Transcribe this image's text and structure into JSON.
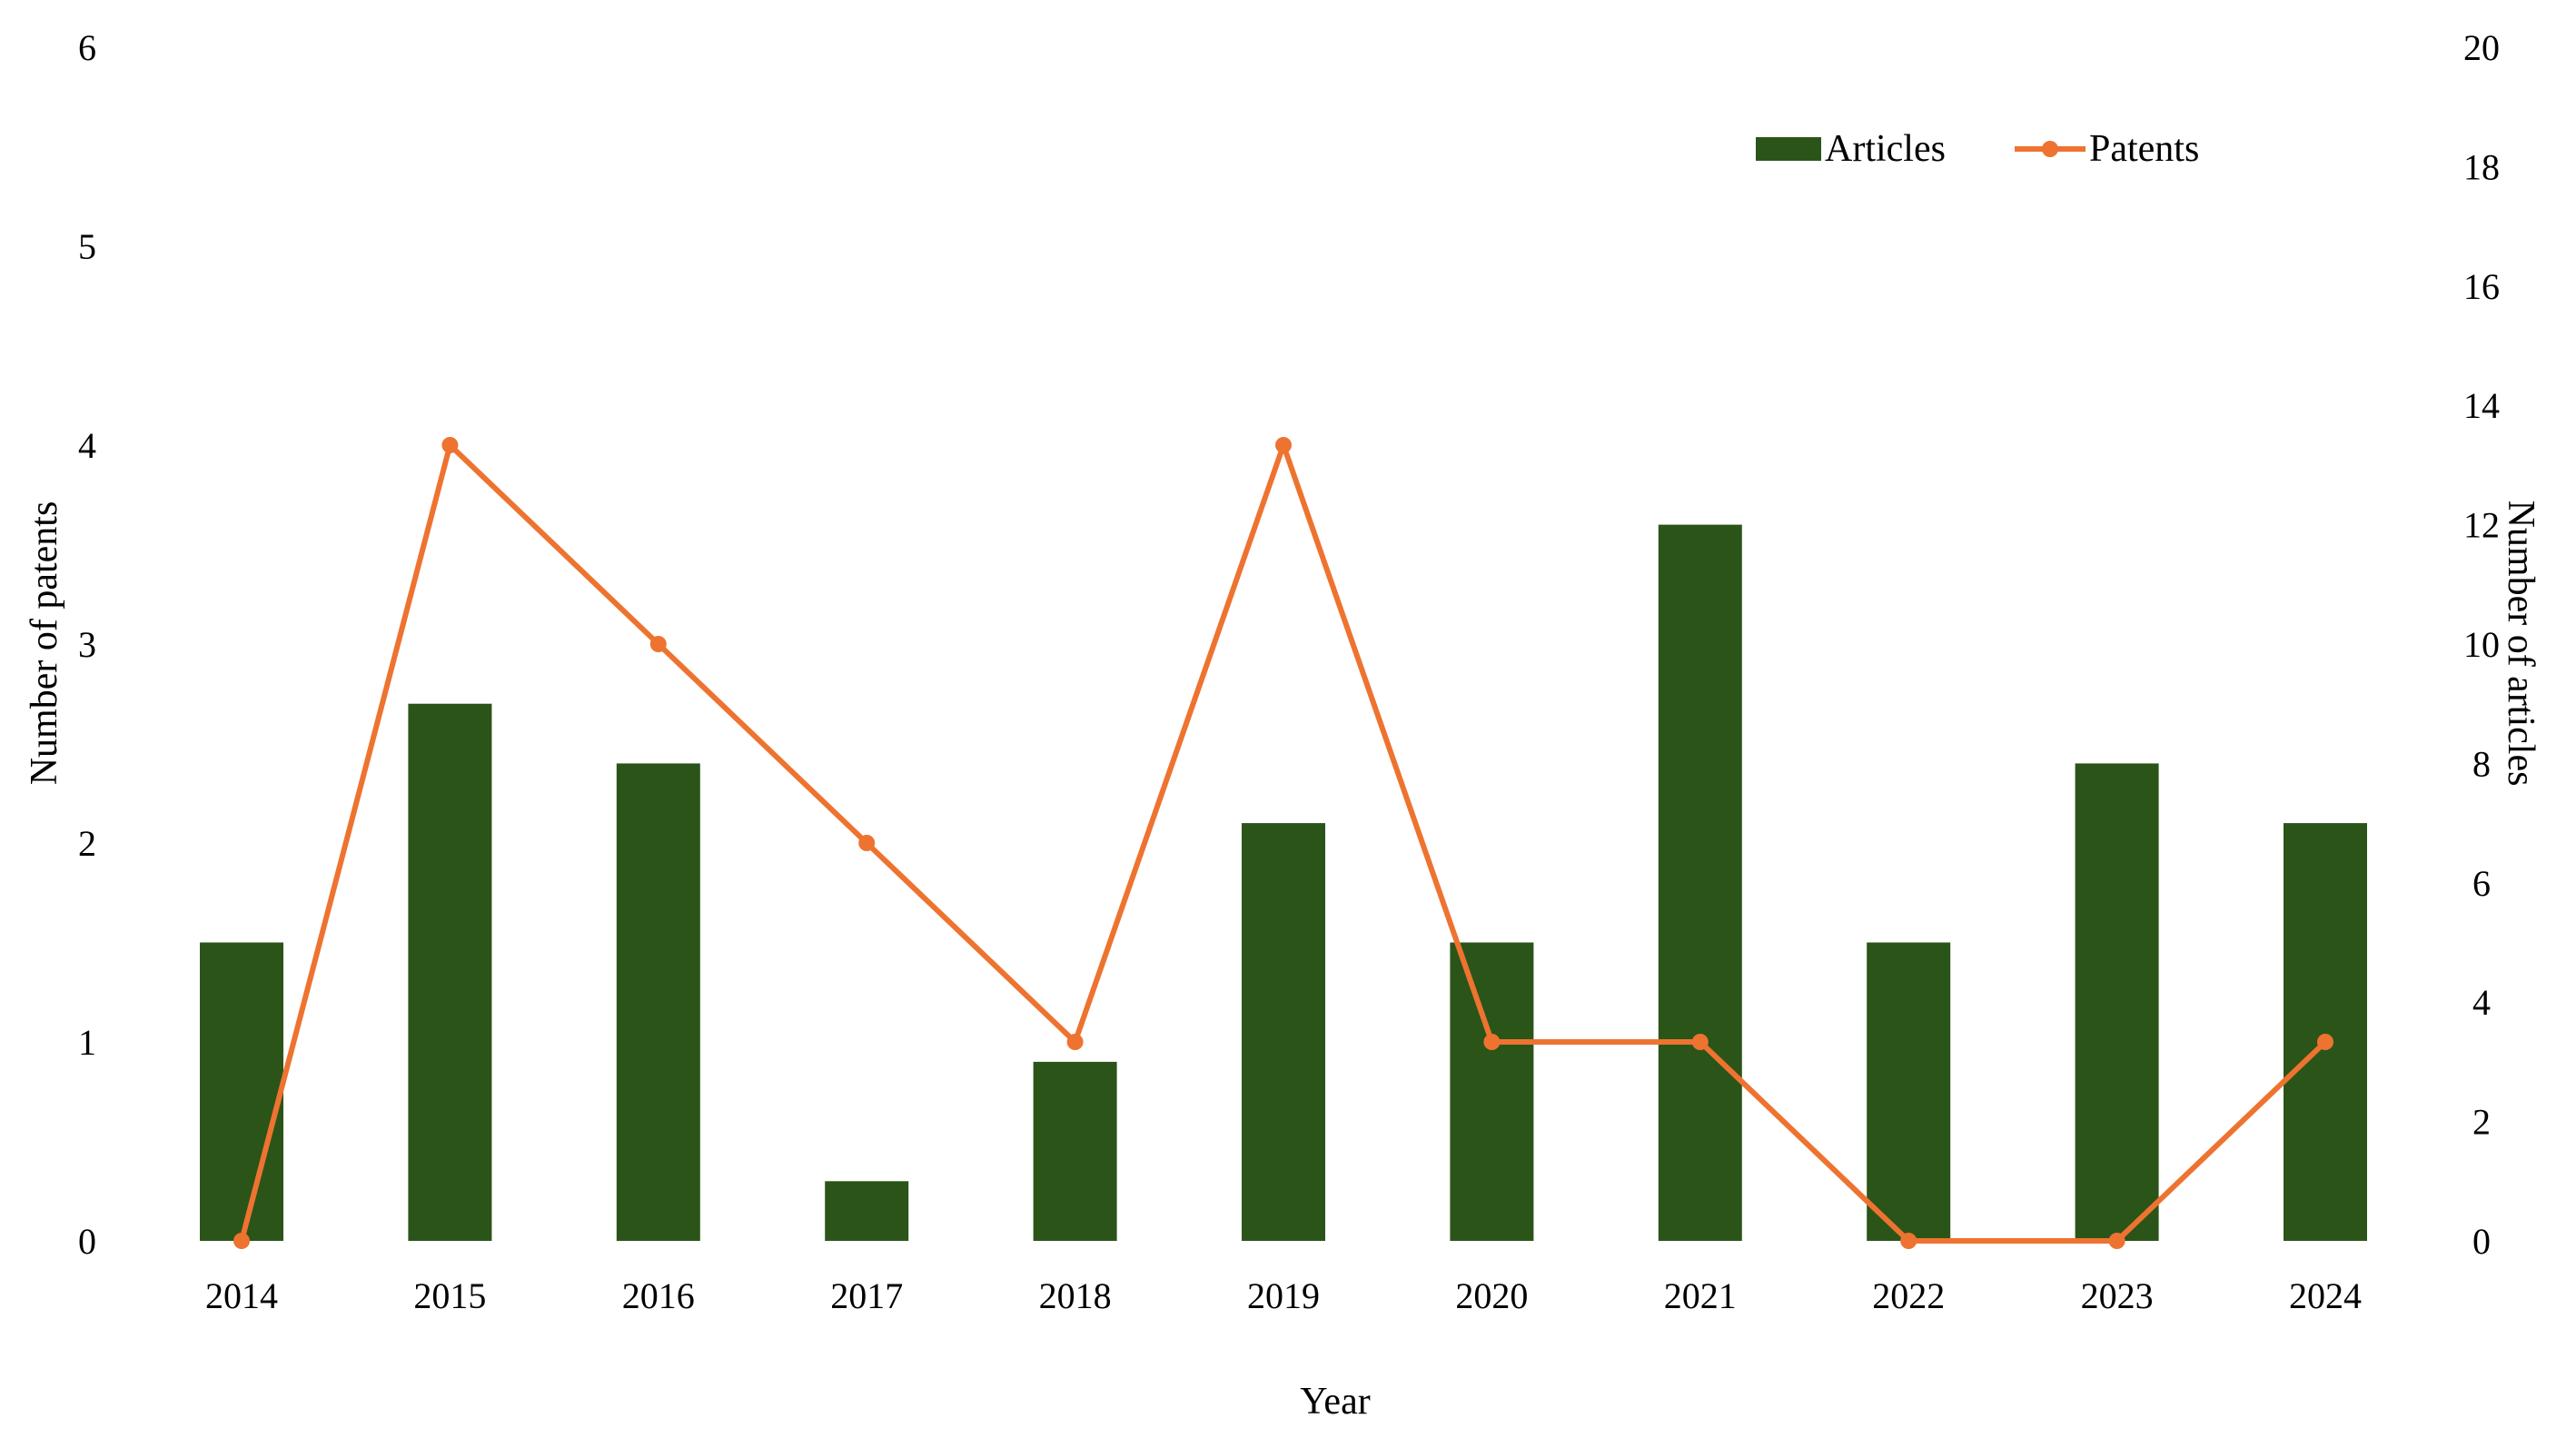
{
  "chart_data": {
    "type": "bar+line",
    "categories": [
      "2014",
      "2015",
      "2016",
      "2017",
      "2018",
      "2019",
      "2020",
      "2021",
      "2022",
      "2023",
      "2024"
    ],
    "series": [
      {
        "name": "Articles",
        "type": "bar",
        "axis": "right",
        "color": "#2b5419",
        "values": [
          5,
          9,
          8,
          1,
          3,
          7,
          5,
          12,
          5,
          8,
          7
        ]
      },
      {
        "name": "Patents",
        "type": "line",
        "axis": "left",
        "color": "#ee7330",
        "values": [
          0,
          4,
          3,
          2,
          1,
          4,
          1,
          1,
          0,
          0,
          1
        ]
      }
    ],
    "xlabel": "Year",
    "ylabel_left": "Number of patents",
    "ylabel_right": "Number of articles",
    "ylim_left": [
      0,
      6
    ],
    "ylim_right": [
      0,
      20
    ],
    "yticks_left": [
      "0",
      "1",
      "2",
      "3",
      "4",
      "5",
      "6"
    ],
    "yticks_right": [
      "0",
      "2",
      "4",
      "6",
      "8",
      "10",
      "12",
      "14",
      "16",
      "18",
      "20"
    ],
    "legend_position": "top-right",
    "grid": false
  }
}
